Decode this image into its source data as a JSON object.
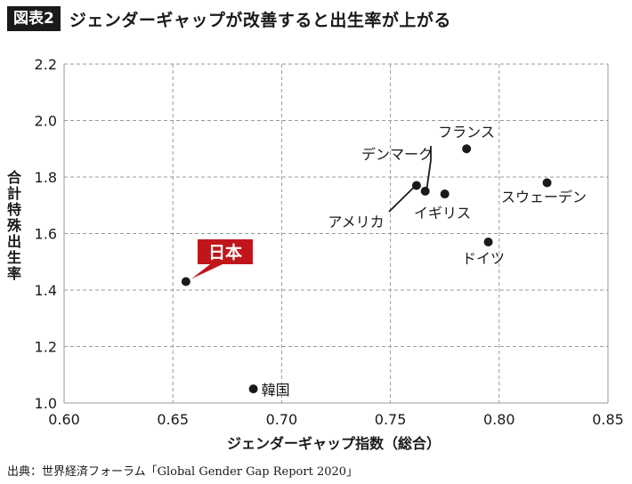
{
  "header": {
    "badge": "図表2",
    "title": "ジェンダーギャップが改善すると出生率が上がる"
  },
  "source": "出典：世界経済フォーラム「Global Gender Gap Report 2020」",
  "colors": {
    "point": "#1a1a1a",
    "highlight": "#c0161b",
    "grid": "#9a9a9a"
  },
  "chart_data": {
    "type": "scatter",
    "title": "ジェンダーギャップが改善すると出生率が上がる",
    "xlabel": "ジェンダーギャップ指数（総合）",
    "ylabel": "合計特殊出生率",
    "xlim": [
      0.6,
      0.85
    ],
    "ylim": [
      1.0,
      2.2
    ],
    "xticks": [
      "0.60",
      "0.65",
      "0.70",
      "0.75",
      "0.80",
      "0.85"
    ],
    "yticks": [
      "1.0",
      "1.2",
      "1.4",
      "1.6",
      "1.8",
      "2.0",
      "2.2"
    ],
    "grid": true,
    "points": [
      {
        "label": "日本",
        "x": 0.656,
        "y": 1.43,
        "highlight": true
      },
      {
        "label": "韓国",
        "x": 0.687,
        "y": 1.05
      },
      {
        "label": "アメリカ",
        "x": 0.762,
        "y": 1.77
      },
      {
        "label": "デンマーク",
        "x": 0.766,
        "y": 1.75
      },
      {
        "label": "イギリス",
        "x": 0.775,
        "y": 1.74
      },
      {
        "label": "フランス",
        "x": 0.785,
        "y": 1.9
      },
      {
        "label": "ドイツ",
        "x": 0.795,
        "y": 1.57
      },
      {
        "label": "スウェーデン",
        "x": 0.822,
        "y": 1.78
      }
    ]
  }
}
